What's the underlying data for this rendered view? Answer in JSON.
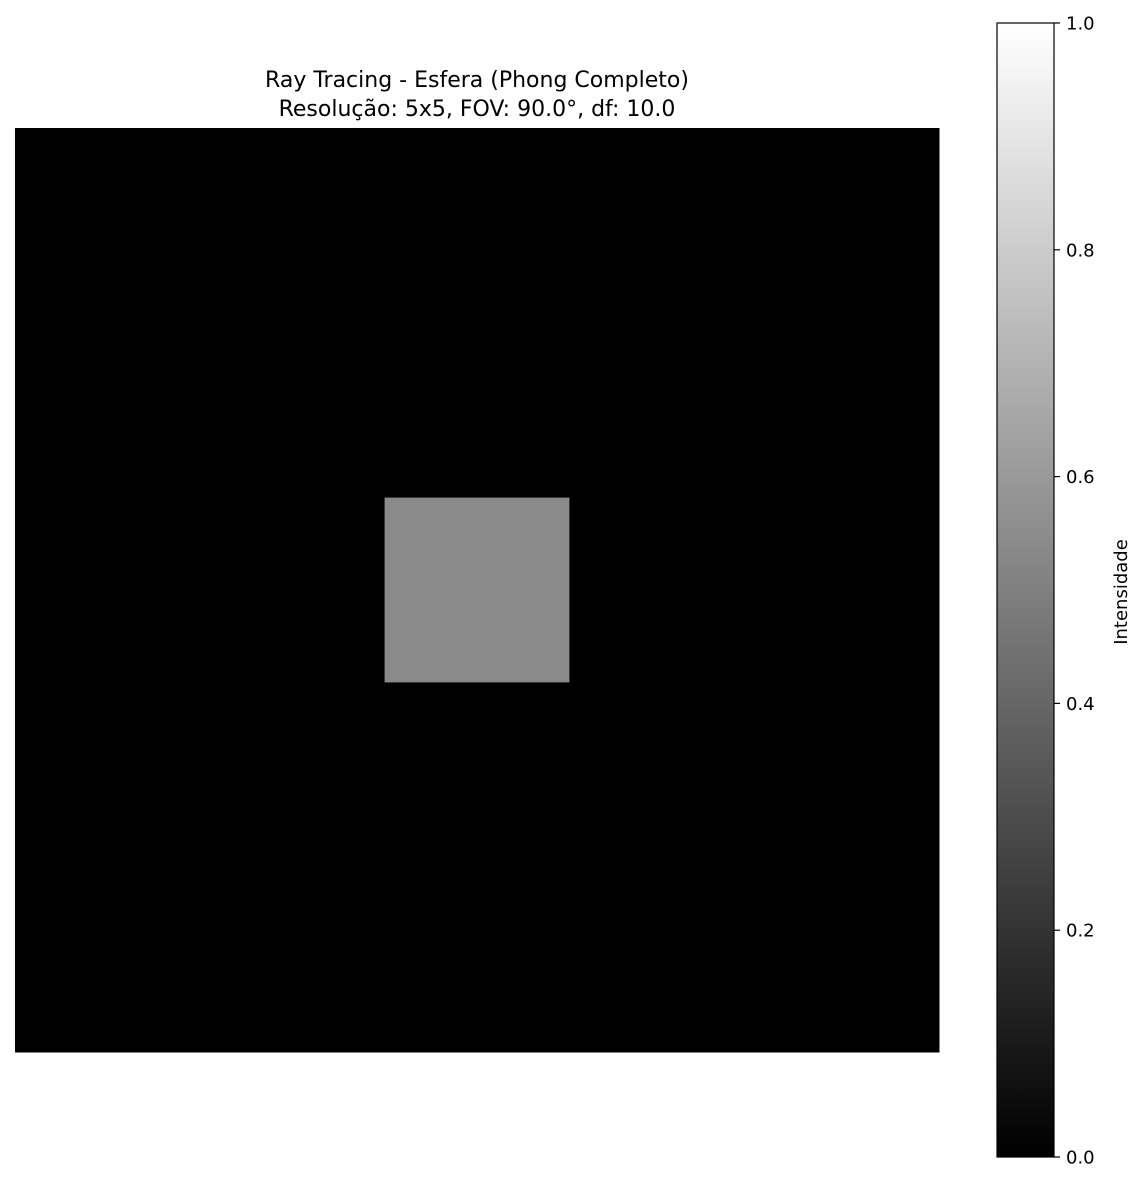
{
  "chart_data": {
    "type": "heatmap",
    "title": "Ray Tracing - Esfera (Phong Completo)",
    "subtitle": "Resolução: 5x5, FOV: 90.0°, df: 10.0",
    "rows": 5,
    "cols": 5,
    "values": [
      [
        0,
        0,
        0,
        0,
        0
      ],
      [
        0,
        0,
        0,
        0,
        0
      ],
      [
        0,
        0,
        0.54,
        0,
        0
      ],
      [
        0,
        0,
        0,
        0,
        0
      ],
      [
        0,
        0,
        0,
        0,
        0
      ]
    ],
    "colormap": "gray",
    "vmin": 0.0,
    "vmax": 1.0,
    "axes_visible": false,
    "colorbar": {
      "label": "Intensidade",
      "ticks": [
        0.0,
        0.2,
        0.4,
        0.6,
        0.8,
        1.0
      ],
      "tick_labels": [
        "0.0",
        "0.2",
        "0.4",
        "0.6",
        "0.8",
        "1.0"
      ],
      "placement": "right"
    }
  }
}
